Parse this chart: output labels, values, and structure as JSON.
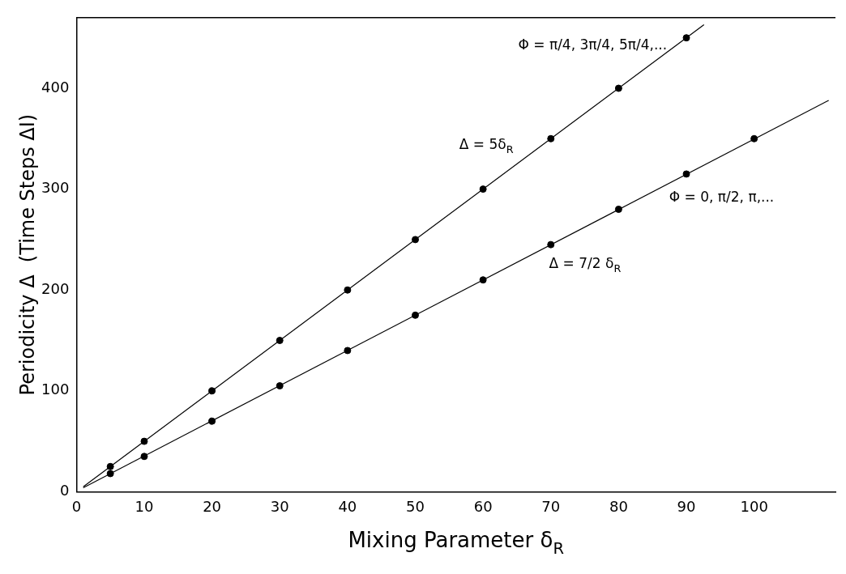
{
  "chart_data": {
    "type": "scatter",
    "xlabel": "Mixing Parameter δ$_{R}$",
    "ylabel": "Periodicity Δ  (Time Steps ΔI)",
    "series": [
      {
        "type": "scatter",
        "marker": "circle",
        "color": "#000000",
        "x": [
          5,
          10,
          20,
          30,
          40,
          50,
          60,
          70,
          80,
          90
        ],
        "values": [
          25,
          50,
          100,
          150,
          200,
          250,
          300,
          350,
          400,
          450
        ]
      },
      {
        "type": "scatter",
        "marker": "circle",
        "color": "#000000",
        "x": [
          5,
          10,
          20,
          30,
          40,
          50,
          60,
          70,
          80,
          90,
          100
        ],
        "values": [
          18,
          35,
          70,
          105,
          140,
          175,
          210,
          245,
          280,
          315,
          350
        ]
      },
      {
        "type": "line",
        "marker": "none",
        "color": "#000000",
        "x": [
          1,
          92.6
        ],
        "values": [
          5,
          463
        ]
      },
      {
        "type": "line",
        "marker": "none",
        "color": "#000000",
        "x": [
          1,
          111
        ],
        "values": [
          4,
          388
        ]
      }
    ],
    "xlim": [
      0,
      112
    ],
    "xticks": [
      0,
      10,
      20,
      30,
      40,
      50,
      60,
      70,
      80,
      90,
      100
    ],
    "ylim": [
      0,
      470
    ],
    "yticks": [
      0,
      100,
      200,
      300,
      400
    ],
    "grid": false,
    "legend": false,
    "annotations": [
      "Φ = π/4, 3π/4, 5π/4,...",
      "Δ = 5δ$_{R}$",
      "Φ = 0, π/2, π,...",
      "Δ = 7/2 δ$_{R}$"
    ]
  }
}
